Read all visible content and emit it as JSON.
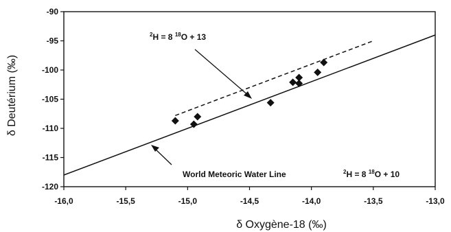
{
  "chart_data": {
    "type": "scatter",
    "xlabel": "δ Oxygène-18 (‰)",
    "ylabel": "δ Deutérium (‰)",
    "xlim": [
      -16.0,
      -13.0
    ],
    "ylim": [
      -120,
      -90
    ],
    "x_ticks": [
      -16.0,
      -15.5,
      -15.0,
      -14.5,
      -14.0,
      -13.5,
      -13.0
    ],
    "x_tick_labels": [
      "-16,0",
      "-15,5",
      "-15,0",
      "-14,5",
      "-14,0",
      "-13,5",
      "-13,0"
    ],
    "y_ticks": [
      -90,
      -95,
      -100,
      -105,
      -110,
      -115,
      -120
    ],
    "y_tick_labels": [
      "-90",
      "-95",
      "-100",
      "-105",
      "-110",
      "-115",
      "-120"
    ],
    "grid": false,
    "points": {
      "marker": "diamond",
      "x": [
        -15.1,
        -14.95,
        -14.92,
        -14.33,
        -14.15,
        -14.1,
        -14.1,
        -13.95,
        -13.9
      ],
      "y": [
        -108.7,
        -109.3,
        -108.0,
        -105.6,
        -102.1,
        -101.3,
        -102.3,
        -100.4,
        -98.7
      ]
    },
    "lines": [
      {
        "label_main": "World Meteoric Water Line",
        "eq_a": "2",
        "eq_b": "H = 8 ",
        "eq_c": "18",
        "eq_d": "O + 10",
        "style": "solid",
        "slope": 8,
        "intercept": 10,
        "x_range": [
          -16.0,
          -13.0
        ]
      },
      {
        "eq_a": "2",
        "eq_b": "H = 8 ",
        "eq_c": "18",
        "eq_d": "O + 13",
        "style": "dashed",
        "slope": 8,
        "intercept": 13,
        "x_range": [
          -15.1,
          -13.5
        ]
      }
    ]
  }
}
